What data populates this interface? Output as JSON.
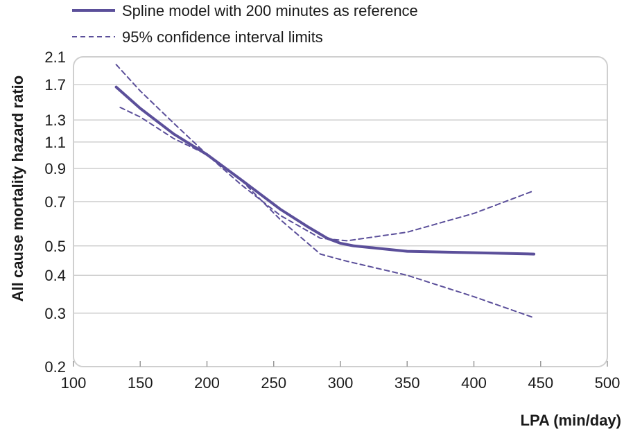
{
  "chart_data": {
    "type": "line",
    "xlabel": "LPA (min/day)",
    "ylabel": "All cause mortality hazard ratio",
    "xlim": [
      100,
      500
    ],
    "ylim": [
      0.2,
      2.1
    ],
    "yscale": "log",
    "xticks": [
      "100",
      "150",
      "200",
      "250",
      "300",
      "350",
      "400",
      "450",
      "500"
    ],
    "yticks": [
      "0.2",
      "0.3",
      "0.4",
      "0.5",
      "0.7",
      "0.9",
      "1.1",
      "1.3",
      "1.7",
      "2.1"
    ],
    "grid": "horizontal",
    "legend_position": "top-left",
    "colors": {
      "series": "#5b4f9a",
      "grid": "#d0d0d0",
      "frame": "#cccccc"
    },
    "series": [
      {
        "name": "Spline model with 200 minutes as reference",
        "style": "solid",
        "x": [
          132,
          150,
          175,
          200,
          225,
          255,
          275,
          290,
          300,
          310,
          350,
          400,
          445
        ],
        "y": [
          1.67,
          1.42,
          1.17,
          1.0,
          0.83,
          0.66,
          0.58,
          0.53,
          0.51,
          0.5,
          0.48,
          0.475,
          0.47
        ]
      },
      {
        "name": "95% confidence interval limits",
        "style": "dashed",
        "x": [
          132,
          150,
          175,
          200,
          225,
          255,
          285,
          305,
          350,
          400,
          445
        ],
        "y": [
          1.98,
          1.62,
          1.27,
          1.0,
          0.8,
          0.63,
          0.53,
          0.52,
          0.555,
          0.64,
          0.76
        ]
      },
      {
        "name": "",
        "style": "dashed",
        "x": [
          135,
          150,
          175,
          200,
          225,
          255,
          285,
          305,
          350,
          400,
          445
        ],
        "y": [
          1.43,
          1.33,
          1.13,
          1.0,
          0.83,
          0.61,
          0.47,
          0.445,
          0.4,
          0.34,
          0.29
        ]
      }
    ]
  }
}
